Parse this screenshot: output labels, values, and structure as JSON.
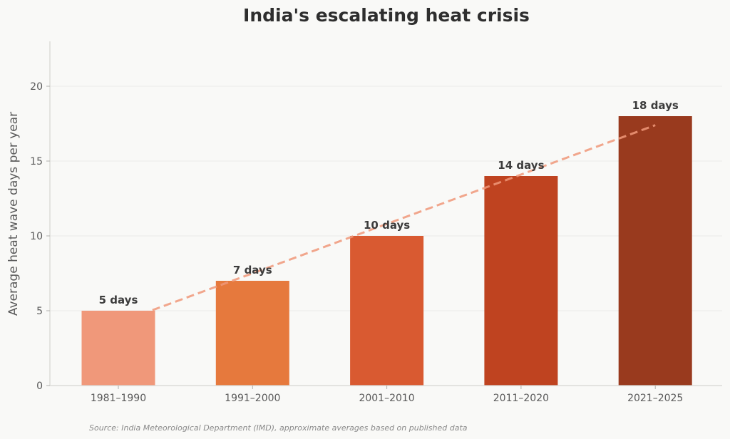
{
  "chart_data": {
    "type": "bar",
    "title": "India's escalating heat crisis",
    "xlabel": "",
    "ylabel": "Average heat wave days per year",
    "categories": [
      "1981–1990",
      "1991–2000",
      "2001–2010",
      "2011–2020",
      "2021–2025"
    ],
    "values": [
      5,
      7,
      10,
      14,
      18
    ],
    "data_labels": [
      "5 days",
      "7 days",
      "10 days",
      "14 days",
      "18 days"
    ],
    "colors": [
      "#f0987a",
      "#e6793d",
      "#d95a31",
      "#bf4320",
      "#993a1e"
    ],
    "ylim": [
      0,
      23
    ],
    "yticks": [
      0,
      5,
      10,
      15,
      20
    ],
    "grid": true,
    "trendline": {
      "style": "dashed",
      "color": "#f0987a",
      "start": 4.2,
      "end": 17.4
    },
    "source": "Source: India Meteorological Department (IMD), approximate averages based on published data"
  }
}
